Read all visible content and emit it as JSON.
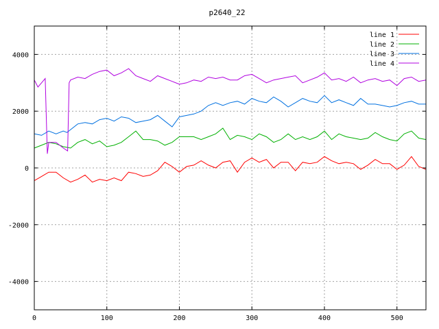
{
  "chart_data": {
    "type": "line",
    "title": "p2640_22",
    "xlabel": "",
    "ylabel": "",
    "xlim": [
      0,
      540
    ],
    "ylim": [
      -5000,
      5000
    ],
    "xticks": [
      0,
      100,
      200,
      300,
      400,
      500
    ],
    "yticks": [
      -4000,
      -2000,
      0,
      2000,
      4000
    ],
    "grid": true,
    "legend_position": "top-right",
    "series": [
      {
        "name": "line 1",
        "color": "#ff0000",
        "x": [
          0,
          10,
          20,
          30,
          40,
          50,
          60,
          70,
          80,
          90,
          100,
          110,
          120,
          130,
          140,
          150,
          160,
          170,
          180,
          190,
          200,
          210,
          220,
          230,
          240,
          250,
          260,
          270,
          280,
          290,
          300,
          310,
          320,
          330,
          340,
          350,
          360,
          370,
          380,
          390,
          400,
          410,
          420,
          430,
          440,
          450,
          460,
          470,
          480,
          490,
          500,
          510,
          520,
          530,
          540
        ],
        "values": [
          -450,
          -300,
          -150,
          -150,
          -350,
          -500,
          -400,
          -250,
          -500,
          -400,
          -450,
          -350,
          -450,
          -150,
          -200,
          -300,
          -250,
          -100,
          200,
          50,
          -150,
          50,
          100,
          250,
          100,
          0,
          200,
          250,
          -150,
          200,
          350,
          200,
          300,
          0,
          200,
          200,
          -100,
          200,
          150,
          200,
          400,
          250,
          150,
          200,
          150,
          -50,
          100,
          300,
          150,
          150,
          -50,
          100,
          400,
          50,
          -50
        ]
      },
      {
        "name": "line 2",
        "color": "#00b000",
        "x": [
          0,
          10,
          20,
          30,
          40,
          50,
          60,
          70,
          80,
          90,
          100,
          110,
          120,
          130,
          140,
          150,
          160,
          170,
          180,
          190,
          200,
          210,
          220,
          230,
          240,
          250,
          260,
          270,
          280,
          290,
          300,
          310,
          320,
          330,
          340,
          350,
          360,
          370,
          380,
          390,
          400,
          410,
          420,
          430,
          440,
          450,
          460,
          470,
          480,
          490,
          500,
          510,
          520,
          530,
          540
        ],
        "values": [
          700,
          800,
          900,
          850,
          750,
          700,
          900,
          1000,
          850,
          950,
          750,
          800,
          900,
          1100,
          1300,
          1000,
          1000,
          950,
          800,
          900,
          1100,
          1100,
          1100,
          1000,
          1100,
          1200,
          1400,
          1000,
          1150,
          1100,
          1000,
          1200,
          1100,
          900,
          1000,
          1200,
          1000,
          1100,
          1000,
          1100,
          1300,
          1000,
          1200,
          1100,
          1050,
          1000,
          1050,
          1250,
          1100,
          1000,
          950,
          1200,
          1300,
          1050,
          1000
        ]
      },
      {
        "name": "line 3",
        "color": "#0070e0",
        "x": [
          0,
          10,
          20,
          30,
          40,
          45,
          50,
          60,
          70,
          80,
          90,
          100,
          110,
          120,
          130,
          140,
          150,
          160,
          170,
          180,
          190,
          200,
          210,
          220,
          230,
          240,
          250,
          260,
          270,
          280,
          290,
          300,
          310,
          320,
          330,
          340,
          350,
          360,
          370,
          380,
          390,
          400,
          410,
          420,
          430,
          440,
          450,
          460,
          470,
          480,
          490,
          500,
          510,
          520,
          530,
          540
        ],
        "values": [
          1200,
          1150,
          1300,
          1200,
          1300,
          1250,
          1350,
          1550,
          1600,
          1550,
          1700,
          1750,
          1650,
          1800,
          1750,
          1600,
          1650,
          1700,
          1850,
          1650,
          1450,
          1800,
          1850,
          1900,
          2000,
          2200,
          2300,
          2200,
          2300,
          2350,
          2250,
          2450,
          2350,
          2300,
          2500,
          2350,
          2150,
          2300,
          2450,
          2350,
          2300,
          2550,
          2300,
          2400,
          2300,
          2200,
          2450,
          2250,
          2250,
          2200,
          2150,
          2200,
          2300,
          2350,
          2250,
          2250
        ]
      },
      {
        "name": "line 4",
        "color": "#b000e0",
        "x": [
          0,
          5,
          10,
          15,
          18,
          20,
          30,
          40,
          46,
          48,
          50,
          60,
          70,
          80,
          90,
          100,
          110,
          120,
          130,
          140,
          150,
          160,
          170,
          180,
          190,
          200,
          210,
          220,
          230,
          240,
          250,
          260,
          270,
          280,
          290,
          300,
          310,
          320,
          330,
          340,
          350,
          360,
          370,
          380,
          390,
          400,
          410,
          420,
          430,
          440,
          450,
          460,
          470,
          480,
          490,
          500,
          510,
          520,
          530,
          540
        ],
        "values": [
          3100,
          2850,
          3000,
          3150,
          500,
          900,
          900,
          700,
          600,
          3000,
          3100,
          3200,
          3150,
          3300,
          3400,
          3450,
          3250,
          3350,
          3500,
          3250,
          3150,
          3050,
          3250,
          3150,
          3050,
          2950,
          3000,
          3100,
          3050,
          3200,
          3150,
          3200,
          3100,
          3100,
          3250,
          3300,
          3150,
          3000,
          3100,
          3150,
          3200,
          3250,
          3000,
          3100,
          3200,
          3350,
          3100,
          3150,
          3050,
          3200,
          3000,
          3100,
          3150,
          3050,
          3100,
          2900,
          3150,
          3200,
          3050,
          3100
        ]
      }
    ]
  }
}
